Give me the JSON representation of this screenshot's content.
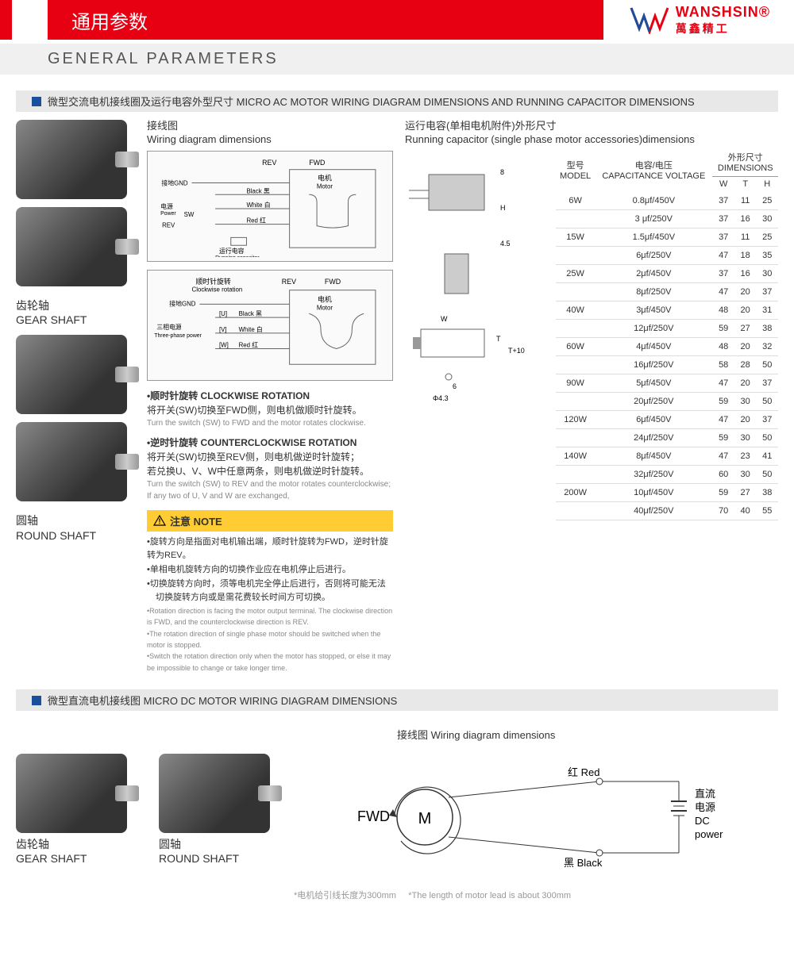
{
  "header": {
    "title_cn": "通用参数",
    "subtitle_en": "GENERAL PARAMETERS",
    "brand_en": "WANSHSIN",
    "brand_cn": "萬鑫精工",
    "brand_reg": "®"
  },
  "section1": {
    "title": "微型交流电机接线圈及运行电容外型尺寸 MICRO AC MOTOR WIRING DIAGRAM DIMENSIONS AND RUNNING CAPACITOR DIMENSIONS",
    "wiring_title_cn": "接线图",
    "wiring_title_en": "Wiring diagram dimensions",
    "capacitor_title_cn": "运行电容(单相电机附件)外形尺寸",
    "capacitor_title_en": "Running capacitor (single phase motor accessories)dimensions",
    "gear_shaft_cn": "齿轮轴",
    "gear_shaft_en": "GEAR SHAFT",
    "round_shaft_cn": "圆轴",
    "round_shaft_en": "ROUND SHAFT",
    "diagram1_labels": {
      "rev": "REV",
      "fwd": "FWD",
      "motor_cn": "电机",
      "motor_en": "Motor",
      "gnd_cn": "接地GND",
      "black": "Black 黑",
      "white": "White 白",
      "red": "Red 红",
      "power_cn": "电源",
      "power_en": "Power",
      "sw": "SW",
      "rev2": "REV",
      "cap_cn": "运行电容",
      "cap_en": "Running capacitor"
    },
    "diagram2_labels": {
      "cw_cn": "顺时针旋转",
      "cw_en": "Clockwise rotation",
      "rev": "REV",
      "fwd": "FWD",
      "motor_cn": "电机",
      "motor_en": "Motor",
      "gnd": "接地GND",
      "u": "[U]",
      "black": "Black 黑",
      "v": "[V]",
      "white": "White 白",
      "w": "[W]",
      "red": "Red 红",
      "three_cn": "三相电源",
      "three_en": "Three-phase power"
    },
    "cw_title": "•顺时针旋转 CLOCKWISE ROTATION",
    "cw_cn": "将开关(SW)切换至FWD侧，则电机做顺时针旋转。",
    "cw_en": "Turn the switch (SW) to FWD and the motor rotates clockwise.",
    "ccw_title": "•逆时针旋转 COUNTERCLOCKWISE ROTATION",
    "ccw_cn1": "将开关(SW)切换至REV侧，则电机做逆时针旋转；",
    "ccw_cn2": "若兑换U、V、W中任意两条，则电机做逆时针旋转。",
    "ccw_en": "Turn the switch (SW) to REV and the motor rotates counterclockwise; If any two of U, V and W are exchanged,",
    "note_title": "注意 NOTE",
    "note_items": [
      "•旋转方向是指面对电机输出端，顺时针旋转为FWD，逆时针旋转为REV。",
      "•单相电机旋转方向的切换作业应在电机停止后进行。",
      "•切换旋转方向时，须等电机完全停止后进行，否则将可能无法",
      "　切换旋转方向或是需花费较长时间方可切换。"
    ],
    "note_items_en": [
      "•Rotation direction is facing the motor output terminal. The clockwise direction is FWD, and the counterclockwise direction is REV.",
      "•The rotation direction of single phase motor should be switched when the motor is stopped.",
      "•Switch the rotation direction only when the motor has stopped, or else it may be impossible to change or take longer time."
    ],
    "cap_dims": {
      "w": "W",
      "t": "T",
      "h": "H",
      "t10": "T+10",
      "phi": "Φ4.3",
      "h8": "8",
      "h45": "4.5",
      "six": "6"
    },
    "table": {
      "headers": {
        "model_cn": "型号",
        "model_en": "MODEL",
        "cap_cn": "电容/电压",
        "cap_en": "CAPACITANCE VOLTAGE",
        "dim_cn": "外形尺寸",
        "dim_en": "DIMENSIONS",
        "w": "W",
        "t": "T",
        "h": "H"
      },
      "rows": [
        {
          "model": "6W",
          "cap": "0.8μf/450V",
          "w": "37",
          "t": "11",
          "h": "25"
        },
        {
          "model": "",
          "cap": "3 μf/250V",
          "w": "37",
          "t": "16",
          "h": "30"
        },
        {
          "model": "15W",
          "cap": "1.5μf/450V",
          "w": "37",
          "t": "11",
          "h": "25"
        },
        {
          "model": "",
          "cap": "6μf/250V",
          "w": "47",
          "t": "18",
          "h": "35"
        },
        {
          "model": "25W",
          "cap": "2μf/450V",
          "w": "37",
          "t": "16",
          "h": "30"
        },
        {
          "model": "",
          "cap": "8μf/250V",
          "w": "47",
          "t": "20",
          "h": "37"
        },
        {
          "model": "40W",
          "cap": "3μf/450V",
          "w": "48",
          "t": "20",
          "h": "31"
        },
        {
          "model": "",
          "cap": "12μf/250V",
          "w": "59",
          "t": "27",
          "h": "38"
        },
        {
          "model": "60W",
          "cap": "4μf/450V",
          "w": "48",
          "t": "20",
          "h": "32"
        },
        {
          "model": "",
          "cap": "16μf/250V",
          "w": "58",
          "t": "28",
          "h": "50"
        },
        {
          "model": "90W",
          "cap": "5μf/450V",
          "w": "47",
          "t": "20",
          "h": "37"
        },
        {
          "model": "",
          "cap": "20μf/250V",
          "w": "59",
          "t": "30",
          "h": "50"
        },
        {
          "model": "120W",
          "cap": "6μf/450V",
          "w": "47",
          "t": "20",
          "h": "37"
        },
        {
          "model": "",
          "cap": "24μf/250V",
          "w": "59",
          "t": "30",
          "h": "50"
        },
        {
          "model": "140W",
          "cap": "8μf/450V",
          "w": "47",
          "t": "23",
          "h": "41"
        },
        {
          "model": "",
          "cap": "32μf/250V",
          "w": "60",
          "t": "30",
          "h": "50"
        },
        {
          "model": "200W",
          "cap": "10μf/450V",
          "w": "59",
          "t": "27",
          "h": "38"
        },
        {
          "model": "",
          "cap": "40μf/250V",
          "w": "70",
          "t": "40",
          "h": "55"
        }
      ]
    }
  },
  "section2": {
    "title": "微型直流电机接线图  MICRO DC MOTOR WIRING DIAGRAM DIMENSIONS",
    "wiring_title_cn": "接线图 Wiring diagram dimensions",
    "gear_shaft_cn": "齿轮轴",
    "gear_shaft_en": "GEAR SHAFT",
    "round_shaft_cn": "圆轴",
    "round_shaft_en": "ROUND SHAFT",
    "diagram": {
      "fwd": "FWD",
      "m": "M",
      "red": "红 Red",
      "black": "黑 Black",
      "dc_cn1": "直流",
      "dc_cn2": "电源",
      "dc_en1": "DC",
      "dc_en2": "power"
    },
    "note_cn": "*电机给引线长度为300mm",
    "note_en": "*The length of motor lead is about 300mm"
  },
  "colors": {
    "red": "#e60012",
    "blue": "#1a4f9c",
    "yellow": "#ffcc33",
    "grey_bg": "#e8e8e8",
    "light_grey": "#f0f0f0"
  }
}
